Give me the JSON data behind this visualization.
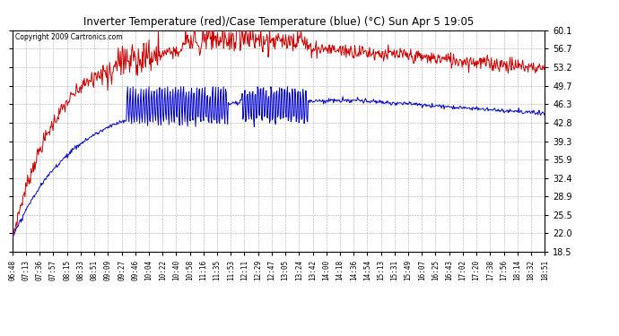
{
  "title": "Inverter Temperature (red)/Case Temperature (blue) (°C) Sun Apr 5 19:05",
  "copyright": "Copyright 2009 Cartronics.com",
  "yticks": [
    18.5,
    22.0,
    25.5,
    28.9,
    32.4,
    35.9,
    39.3,
    42.8,
    46.3,
    49.7,
    53.2,
    56.7,
    60.1
  ],
  "ylim": [
    18.5,
    60.1
  ],
  "bg_color": "#ffffff",
  "plot_bg_color": "#ffffff",
  "grid_color": "#aaaaaa",
  "red_color": "#cc0000",
  "blue_color": "#0000cc",
  "xtick_labels": [
    "06:48",
    "07:13",
    "07:36",
    "07:57",
    "08:15",
    "08:33",
    "08:51",
    "09:09",
    "09:27",
    "09:46",
    "10:04",
    "10:22",
    "10:40",
    "10:58",
    "11:16",
    "11:35",
    "11:53",
    "12:11",
    "12:29",
    "12:47",
    "13:05",
    "13:24",
    "13:42",
    "14:00",
    "14:18",
    "14:36",
    "14:54",
    "15:13",
    "15:31",
    "15:49",
    "16:07",
    "16:25",
    "16:43",
    "17:02",
    "17:20",
    "17:38",
    "17:56",
    "18:14",
    "18:32",
    "18:51"
  ]
}
